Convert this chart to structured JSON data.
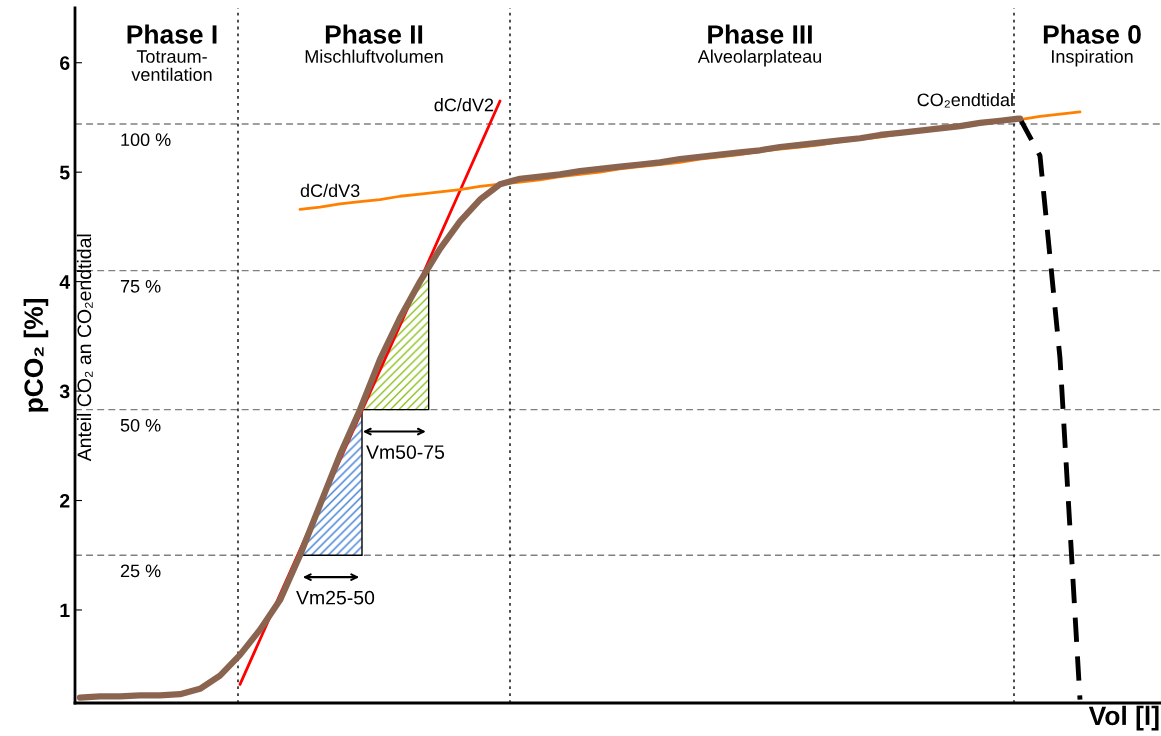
{
  "chart_data": {
    "type": "line",
    "xlabel": "Vol [l]",
    "ylabel": "pCO₂ [%]",
    "y2label": "Anteil CO₂ an CO₂endtidal",
    "categories": [
      null,
      null,
      null,
      null,
      null,
      null,
      null,
      null,
      null,
      null,
      null,
      null,
      null,
      null,
      null,
      null,
      null,
      null,
      null,
      null,
      null,
      null,
      null,
      null,
      null,
      null,
      null,
      null,
      null,
      null,
      null,
      null,
      null,
      null,
      null,
      null,
      null,
      null,
      null,
      null,
      null,
      null,
      null,
      null,
      null,
      null,
      null,
      null,
      null,
      null,
      null,
      null,
      null,
      null
    ],
    "ylim": [
      0.15,
      6.5
    ],
    "yticks": [
      1,
      2,
      3,
      4,
      5,
      6
    ],
    "tick_labels": "y",
    "grid": false,
    "legend": false,
    "series": [
      {
        "color": "#ff0000",
        "name": "dC/dV2",
        "values": [
          null,
          null,
          null,
          null,
          null,
          null,
          null,
          null,
          0.32,
          0.73,
          1.14,
          1.55,
          1.96,
          2.37,
          2.78,
          3.19,
          3.6,
          4.01,
          4.42,
          4.83,
          5.24,
          5.65,
          null,
          null,
          null,
          null,
          null,
          null,
          null,
          null,
          null,
          null,
          null,
          null,
          null,
          null,
          null,
          null,
          null,
          null,
          null,
          null,
          null,
          null,
          null,
          null,
          null,
          null,
          null,
          null,
          null,
          null,
          null,
          null
        ]
      },
      {
        "color": "#ff8000",
        "name": "dC/dV3",
        "values": [
          null,
          null,
          null,
          null,
          null,
          null,
          null,
          null,
          null,
          null,
          null,
          4.66,
          4.68,
          4.71,
          4.73,
          4.75,
          4.78,
          4.8,
          4.82,
          4.84,
          4.87,
          4.89,
          4.91,
          4.93,
          4.96,
          4.98,
          5.0,
          5.03,
          5.05,
          5.07,
          5.09,
          5.12,
          5.14,
          5.16,
          5.19,
          5.21,
          5.23,
          5.25,
          5.28,
          5.3,
          5.32,
          5.35,
          5.37,
          5.39,
          5.41,
          5.44,
          5.46,
          5.48,
          5.51,
          5.53,
          5.55,
          null,
          null,
          null
        ]
      },
      {
        "color": "#8b6450",
        "values": [
          0.2,
          0.21,
          0.21,
          0.22,
          0.22,
          0.23,
          0.28,
          0.4,
          0.59,
          0.82,
          1.09,
          1.5,
          1.96,
          2.42,
          2.83,
          3.29,
          3.67,
          4.0,
          4.3,
          4.55,
          4.75,
          4.89,
          4.94,
          4.96,
          4.98,
          5.01,
          5.03,
          5.05,
          5.07,
          5.09,
          5.12,
          5.14,
          5.16,
          5.18,
          5.2,
          5.23,
          5.25,
          5.27,
          5.29,
          5.31,
          5.34,
          5.36,
          5.38,
          5.4,
          5.42,
          5.45,
          5.47,
          5.49,
          null,
          null,
          null,
          null,
          null,
          null
        ]
      },
      {
        "color": "#000000",
        "line_style": "dashed",
        "values": [
          null,
          null,
          null,
          null,
          null,
          null,
          null,
          null,
          null,
          null,
          null,
          null,
          null,
          null,
          null,
          null,
          null,
          null,
          null,
          null,
          null,
          null,
          null,
          null,
          null,
          null,
          null,
          null,
          null,
          null,
          null,
          null,
          null,
          null,
          null,
          null,
          null,
          null,
          null,
          null,
          null,
          null,
          null,
          null,
          null,
          null,
          null,
          5.49,
          5.15,
          3.3,
          0.18,
          null,
          null,
          null
        ]
      }
    ],
    "ref_lines": [
      {
        "axis": "y",
        "value": 5.44,
        "color": "#808080",
        "line_style": "dashed"
      },
      {
        "axis": "y",
        "value": 4.1,
        "color": "#808080",
        "line_style": "dashed"
      },
      {
        "axis": "y",
        "value": 2.83,
        "color": "#808080",
        "line_style": "dashed"
      },
      {
        "axis": "y",
        "value": 1.5,
        "color": "#808080",
        "line_style": "dashed"
      }
    ],
    "annotations": [
      "Phase I",
      "Totraum-\nventilation",
      "Phase II",
      "Mischluftvolumen",
      "Phase III",
      "Alveolarplateau",
      "Phase 0",
      "Inspiration",
      {
        "text": "CO₂endtidal",
        "y": 5.49
      },
      {
        "text": "100 %",
        "y": 5.44
      },
      {
        "text": "75 %",
        "y": 4.1
      },
      {
        "text": "50 %",
        "y": 2.83
      },
      {
        "text": "25 %",
        "y": 1.5
      },
      "Vm25-50",
      "Vm50-75"
    ]
  }
}
